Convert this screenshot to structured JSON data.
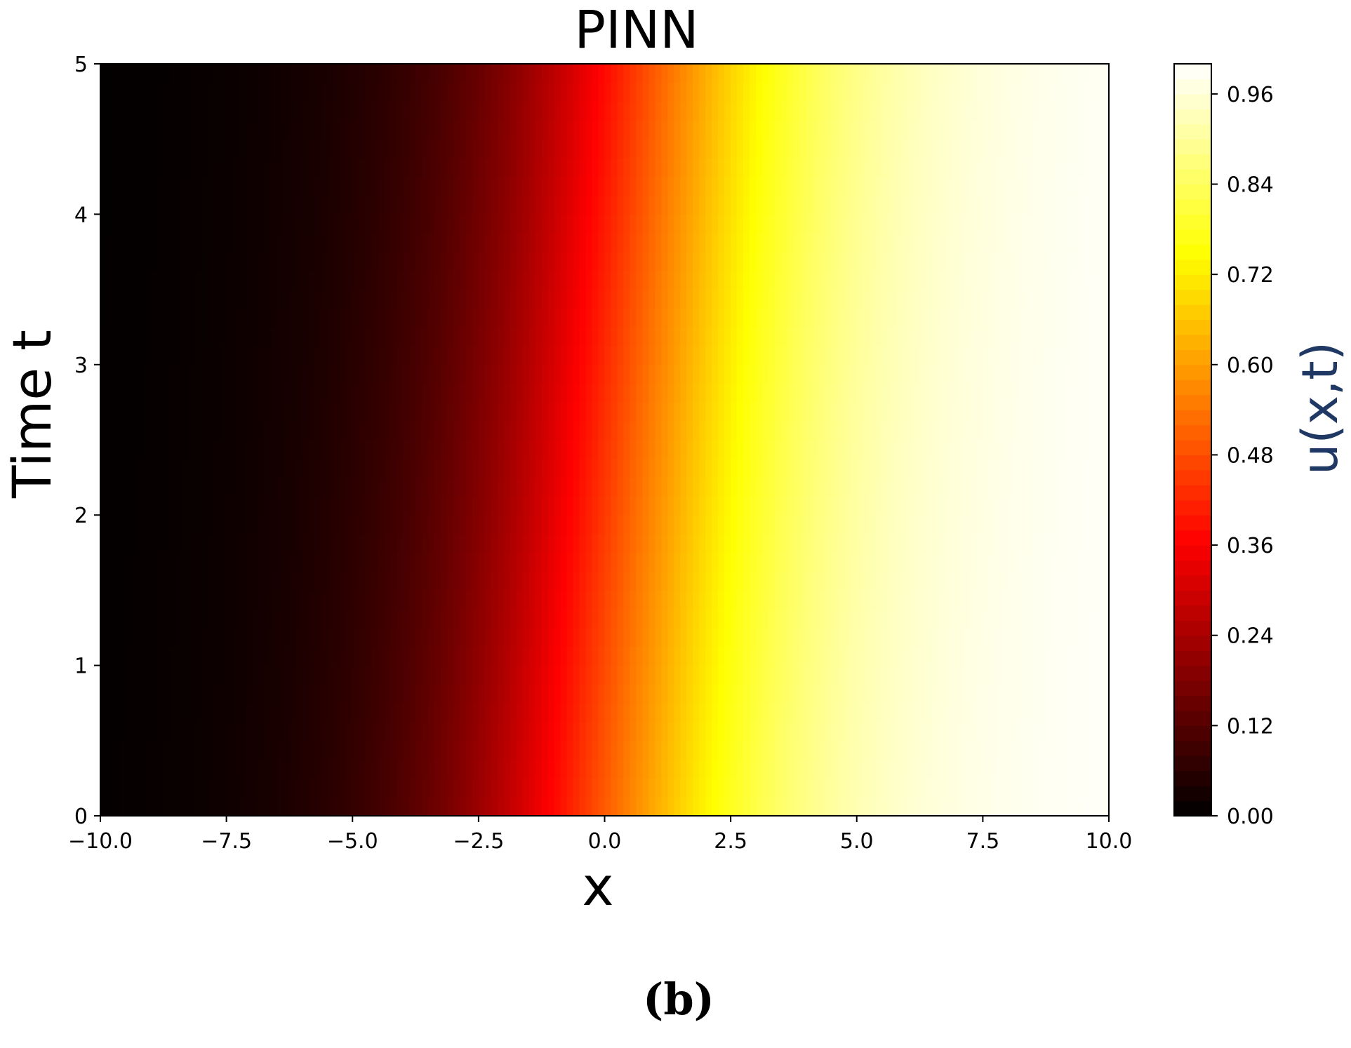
{
  "chart_data": {
    "type": "heatmap",
    "title": "PINN",
    "xlabel": "x",
    "ylabel": "Time t",
    "colorbar_label": "u(x,t)",
    "xlim": [
      -10,
      10
    ],
    "ylim": [
      0,
      5
    ],
    "clim": [
      0,
      1
    ],
    "x_ticks": [
      -10.0,
      -7.5,
      -5.0,
      -2.5,
      0.0,
      2.5,
      5.0,
      7.5,
      10.0
    ],
    "x_tick_labels": [
      "−10.0",
      "−7.5",
      "−5.0",
      "−2.5",
      "0.0",
      "2.5",
      "5.0",
      "7.5",
      "10.0"
    ],
    "y_ticks": [
      0,
      1,
      2,
      3,
      4,
      5
    ],
    "y_tick_labels": [
      "0",
      "1",
      "2",
      "3",
      "4",
      "5"
    ],
    "colorbar_ticks": [
      0.0,
      0.12,
      0.24,
      0.36,
      0.48,
      0.6,
      0.72,
      0.84,
      0.96
    ],
    "colorbar_tick_labels": [
      "0.00",
      "0.12",
      "0.24",
      "0.36",
      "0.48",
      "0.60",
      "0.72",
      "0.84",
      "0.96"
    ],
    "colormap": "hot",
    "front_speed": 0.2,
    "front_width": 2.0,
    "grid": false
  },
  "panel_label": "(b)"
}
